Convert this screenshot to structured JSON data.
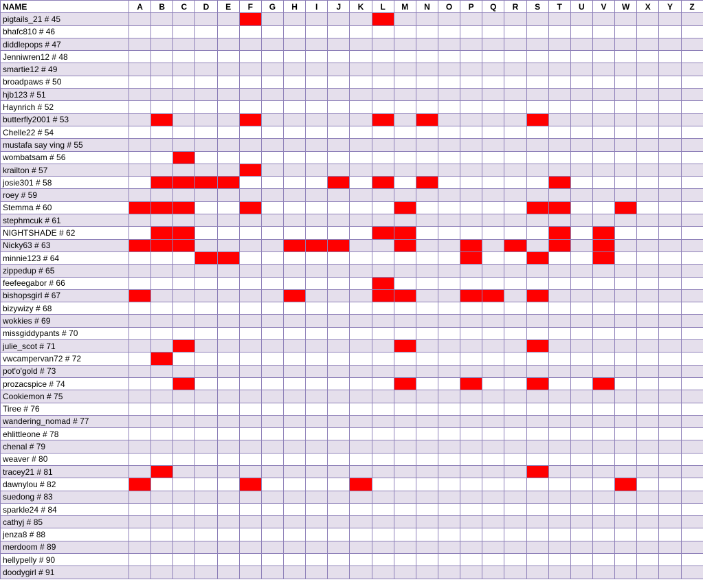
{
  "header": {
    "name_label": "NAME",
    "letters": [
      "A",
      "B",
      "C",
      "D",
      "E",
      "F",
      "G",
      "H",
      "I",
      "J",
      "K",
      "L",
      "M",
      "N",
      "O",
      "P",
      "Q",
      "R",
      "S",
      "T",
      "U",
      "V",
      "W",
      "X",
      "Y",
      "Z"
    ]
  },
  "colors": {
    "marked": "#ff0000",
    "shaded_row": "#e5dfec",
    "grid_line": "#8d7fb8"
  },
  "rows": [
    {
      "name": "pigtails_21 # 45",
      "marked": [
        "F",
        "L"
      ]
    },
    {
      "name": "bhafc810 # 46",
      "marked": []
    },
    {
      "name": "diddlepops # 47",
      "marked": []
    },
    {
      "name": "Jenniwren12 # 48",
      "marked": []
    },
    {
      "name": "smartie12 # 49",
      "marked": []
    },
    {
      "name": "broadpaws # 50",
      "marked": []
    },
    {
      "name": "hjb123 # 51",
      "marked": []
    },
    {
      "name": "Haynrich # 52",
      "marked": []
    },
    {
      "name": "butterfly2001 # 53",
      "marked": [
        "B",
        "F",
        "L",
        "N",
        "S"
      ]
    },
    {
      "name": "Chelle22 # 54",
      "marked": []
    },
    {
      "name": "mustafa say ving # 55",
      "marked": []
    },
    {
      "name": "wombatsam # 56",
      "marked": [
        "C"
      ]
    },
    {
      "name": "krailton # 57",
      "marked": [
        "F"
      ]
    },
    {
      "name": "josie301 # 58",
      "marked": [
        "B",
        "C",
        "D",
        "E",
        "J",
        "L",
        "N",
        "T"
      ]
    },
    {
      "name": "roey # 59",
      "marked": []
    },
    {
      "name": "Stemma # 60",
      "marked": [
        "A",
        "B",
        "C",
        "F",
        "M",
        "S",
        "T",
        "W"
      ]
    },
    {
      "name": "stephmcuk # 61",
      "marked": []
    },
    {
      "name": "NIGHTSHADE # 62",
      "marked": [
        "B",
        "C",
        "L",
        "M",
        "T",
        "V"
      ]
    },
    {
      "name": "Nicky63 # 63",
      "marked": [
        "A",
        "B",
        "C",
        "H",
        "I",
        "J",
        "M",
        "P",
        "R",
        "T",
        "V"
      ]
    },
    {
      "name": "minnie123 # 64",
      "marked": [
        "D",
        "E",
        "P",
        "S",
        "V"
      ]
    },
    {
      "name": "zippedup # 65",
      "marked": []
    },
    {
      "name": "feefeegabor # 66",
      "marked": [
        "L"
      ]
    },
    {
      "name": "bishopsgirl # 67",
      "marked": [
        "A",
        "H",
        "L",
        "M",
        "P",
        "Q",
        "S"
      ]
    },
    {
      "name": "bizywizy # 68",
      "marked": []
    },
    {
      "name": "wokkies # 69",
      "marked": []
    },
    {
      "name": "missgiddypants # 70",
      "marked": []
    },
    {
      "name": "julie_scot # 71",
      "marked": [
        "C",
        "M",
        "S"
      ]
    },
    {
      "name": "vwcampervan72 # 72",
      "marked": [
        "B"
      ]
    },
    {
      "name": "pot'o'gold # 73",
      "marked": []
    },
    {
      "name": "prozacspice # 74",
      "marked": [
        "C",
        "M",
        "P",
        "S",
        "V"
      ]
    },
    {
      "name": "Cookiemon # 75",
      "marked": []
    },
    {
      "name": "Tiree # 76",
      "marked": []
    },
    {
      "name": "wandering_nomad # 77",
      "marked": []
    },
    {
      "name": "ehlittleone # 78",
      "marked": []
    },
    {
      "name": "chenal # 79",
      "marked": []
    },
    {
      "name": "weaver # 80",
      "marked": []
    },
    {
      "name": "tracey21 # 81",
      "marked": [
        "B",
        "S"
      ]
    },
    {
      "name": "dawnylou # 82",
      "marked": [
        "A",
        "F",
        "K",
        "W"
      ]
    },
    {
      "name": "suedong # 83",
      "marked": []
    },
    {
      "name": "sparkle24 # 84",
      "marked": []
    },
    {
      "name": "cathyj # 85",
      "marked": []
    },
    {
      "name": "jenza8 # 88",
      "marked": []
    },
    {
      "name": "merdoom # 89",
      "marked": []
    },
    {
      "name": "hellypelly # 90",
      "marked": []
    },
    {
      "name": "doodygirl # 91",
      "marked": []
    }
  ]
}
